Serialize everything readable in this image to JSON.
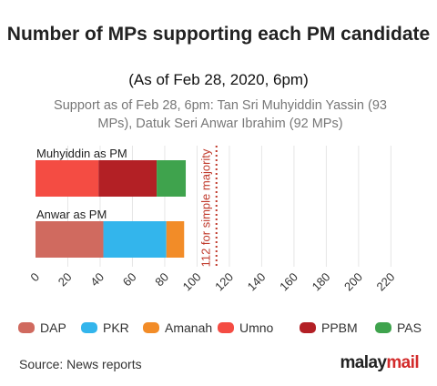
{
  "title": "Number of MPs supporting each PM candidate",
  "subtitle": "(As of Feb 28, 2020, 6pm)",
  "description": "Support as of Feb 28, 6pm: Tan Sri Muhyiddin Yassin (93 MPs), Datuk Seri Anwar Ibrahim (92 MPs)",
  "source": "Source: News reports",
  "logo": {
    "part1": "malay",
    "part2": "mail"
  },
  "chart_data": {
    "type": "bar",
    "orientation": "horizontal",
    "stacked": true,
    "title": "Number of MPs supporting each PM candidate",
    "subtitle": "(As of Feb 28, 2020, 6pm)",
    "categories": [
      "Muhyiddin as PM",
      "Anwar as PM"
    ],
    "series": [
      {
        "name": "DAP",
        "color": "#d06a5f",
        "values": [
          0,
          42
        ]
      },
      {
        "name": "PKR",
        "color": "#33b5ec",
        "values": [
          0,
          39
        ]
      },
      {
        "name": "Amanah",
        "color": "#f28c28",
        "values": [
          0,
          11
        ]
      },
      {
        "name": "Umno",
        "color": "#f44c43",
        "values": [
          39,
          0
        ]
      },
      {
        "name": "PPBM",
        "color": "#b32025",
        "values": [
          36,
          0
        ]
      },
      {
        "name": "PAS",
        "color": "#3fa34d",
        "values": [
          18,
          0
        ]
      }
    ],
    "xlim": [
      0,
      230
    ],
    "xticks": [
      0,
      20,
      40,
      60,
      80,
      100,
      120,
      140,
      160,
      180,
      200,
      220
    ],
    "grid": "vertical",
    "reference_line": {
      "value": 112,
      "label": "112 for simple majority",
      "color": "#c0392b"
    },
    "legend": "bottom"
  }
}
